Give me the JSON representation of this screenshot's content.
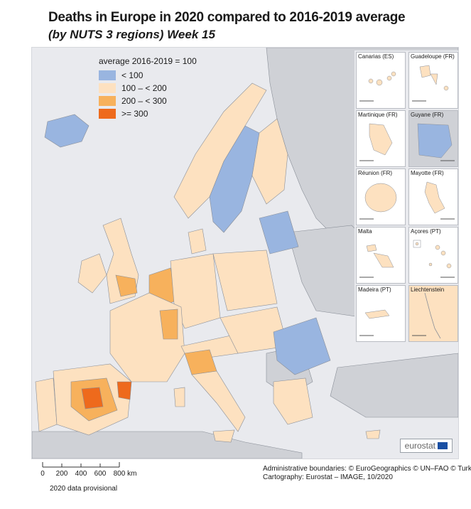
{
  "header": {
    "title": "Deaths in Europe in 2020 compared to 2016-2019 average",
    "subtitle": "(by NUTS 3 regions) Week 15"
  },
  "legend": {
    "title": "average 2016-2019 = 100",
    "classes": [
      {
        "label": "< 100",
        "color": "#99b5e0"
      },
      {
        "label": "100 – < 200",
        "color": "#fde1c0"
      },
      {
        "label": "200 – < 300",
        "color": "#f7b15c"
      },
      {
        "label": ">= 300",
        "color": "#ee6a1c"
      }
    ]
  },
  "colors": {
    "sea": "#e9eaee",
    "non_eu_land": "#cfd1d6",
    "border": "#8a8f98",
    "lt100": "#99b5e0",
    "c100_200": "#fde1c0",
    "c200_300": "#f7b15c",
    "ge300": "#ee6a1c"
  },
  "insets": [
    {
      "name": "Canarias (ES)",
      "scale": [
        "0",
        "100"
      ]
    },
    {
      "name": "Guadeloupe (FR)",
      "scale": [
        "0",
        "25"
      ]
    },
    {
      "name": "Martinique (FR)",
      "scale": [
        "0",
        "20"
      ]
    },
    {
      "name": "Guyane (FR)",
      "scale": [
        "0",
        "100"
      ]
    },
    {
      "name": "Réunion (FR)",
      "scale": [
        "0",
        "20"
      ]
    },
    {
      "name": "Mayotte (FR)",
      "scale": [
        "0",
        "15"
      ]
    },
    {
      "name": "Malta",
      "scale": [
        "0",
        "10"
      ]
    },
    {
      "name": "Açores (PT)",
      "scale": [
        "0",
        "50"
      ]
    },
    {
      "name": "Madeira (PT)",
      "scale": [
        "0",
        "20"
      ]
    },
    {
      "name": "Liechtenstein",
      "scale": [
        "0",
        "5"
      ]
    }
  ],
  "logo": "eurostat",
  "scalebar": {
    "labels": [
      "0",
      "200",
      "400",
      "600",
      "800 km"
    ]
  },
  "note": "2020 data provisional",
  "credits": {
    "line1": "Administrative boundaries: © EuroGeographics © UN–FAO © Turkstat",
    "line2": "Cartography: Eurostat – IMAGE, 10/2020"
  }
}
